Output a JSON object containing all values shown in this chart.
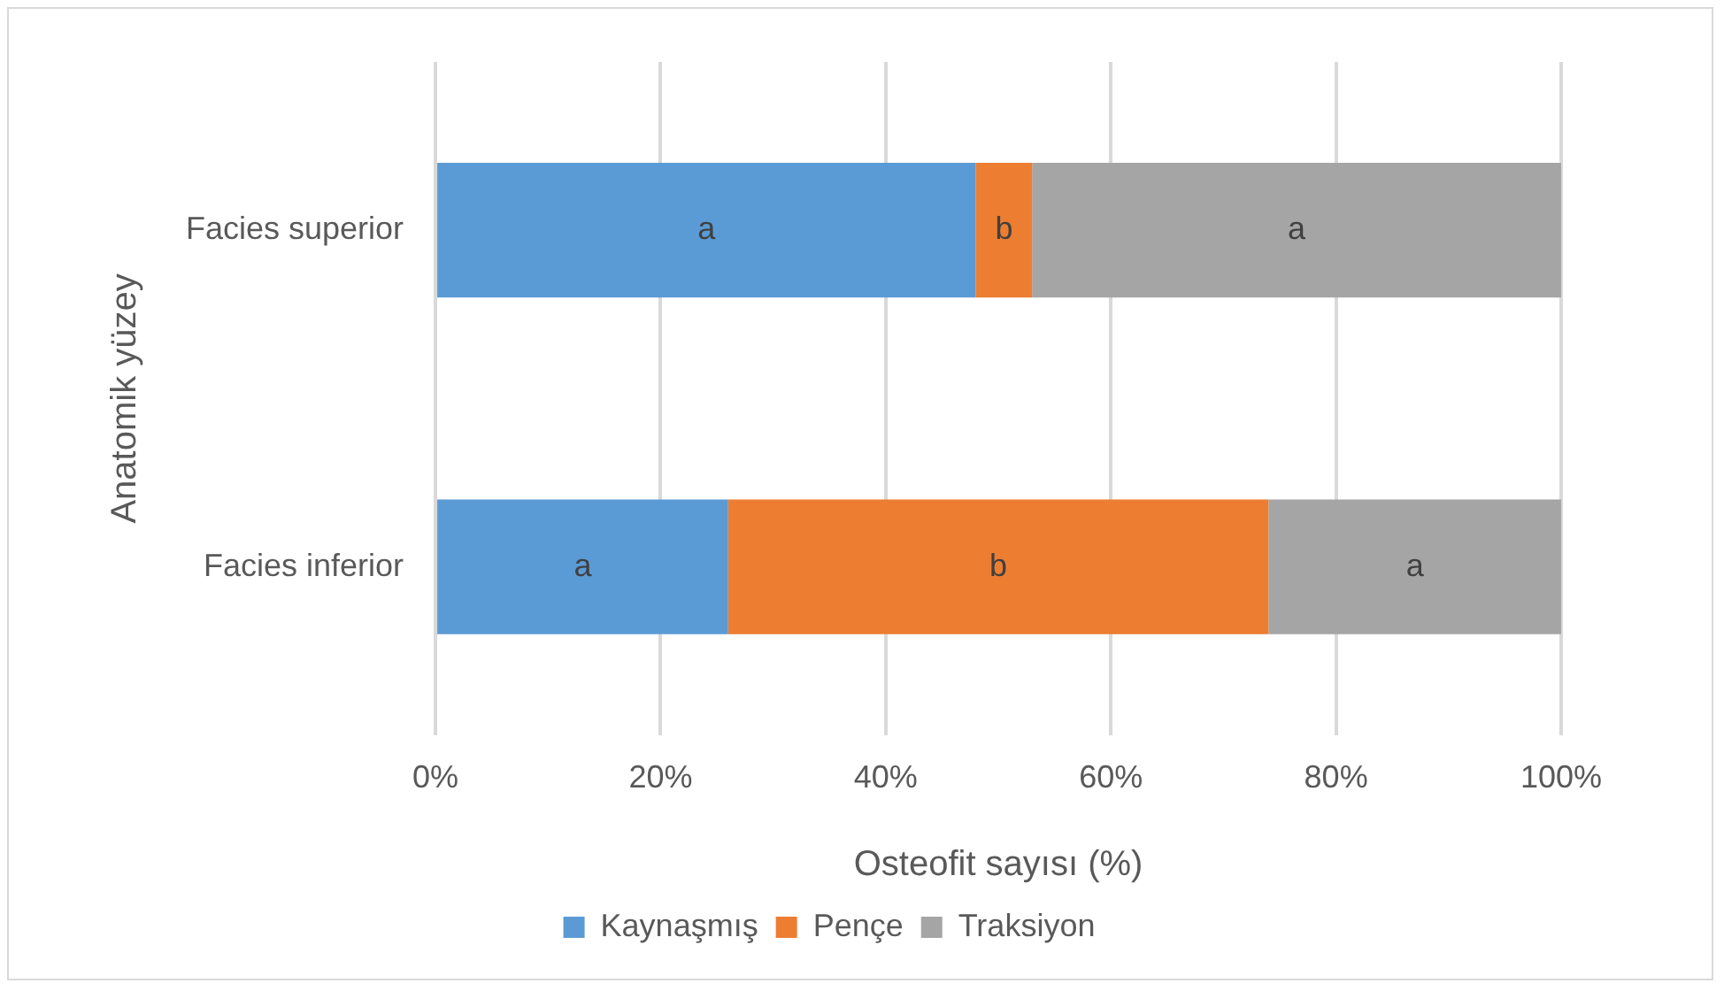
{
  "chart_data": {
    "type": "bar",
    "orientation": "horizontal",
    "stacked": true,
    "xlabel": "Osteofit sayısı (%)",
    "ylabel": "Anatomik yüzey",
    "categories": [
      "Facies superior",
      "Facies inferior"
    ],
    "series": [
      {
        "name": "Kaynaşmış",
        "color": "#5b9bd5",
        "values": [
          48,
          26
        ],
        "value_labels": [
          "a",
          "a"
        ]
      },
      {
        "name": "Pençe",
        "color": "#ed7d31",
        "values": [
          5,
          48
        ],
        "value_labels": [
          "b",
          "b"
        ]
      },
      {
        "name": "Traksiyon",
        "color": "#a5a5a5",
        "values": [
          47,
          26
        ],
        "value_labels": [
          "a",
          "a"
        ]
      }
    ],
    "xlim": [
      0,
      100
    ],
    "xticks": [
      {
        "value": 0,
        "label": "0%"
      },
      {
        "value": 20,
        "label": "20%"
      },
      {
        "value": 40,
        "label": "40%"
      },
      {
        "value": 60,
        "label": "60%"
      },
      {
        "value": 80,
        "label": "80%"
      },
      {
        "value": 100,
        "label": "100%"
      }
    ],
    "grid": "x",
    "legend": "bottom"
  }
}
